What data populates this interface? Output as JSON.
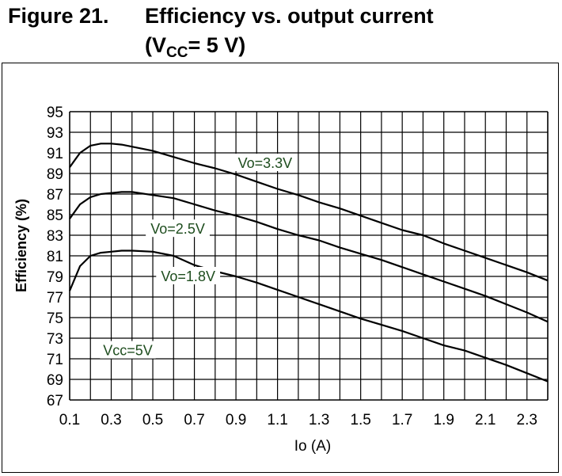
{
  "caption": {
    "figure_number": "Figure 21.",
    "title_line1": "Efficiency vs. output current",
    "title_line2_prefix": "(V",
    "title_line2_sub": "CC",
    "title_line2_suffix": "= 5 V)"
  },
  "colors": {
    "curve": "#000000",
    "grid": "#000000",
    "label_text": "#1e4d1e"
  },
  "chart_data": {
    "type": "line",
    "title": "Efficiency vs. output current (VCC= 5 V)",
    "xlabel": "Io (A)",
    "ylabel": "Efficiency (%)",
    "xlim": [
      0.1,
      2.4
    ],
    "ylim": [
      67,
      95
    ],
    "x_ticks": [
      "0.1",
      "0.3",
      "0.5",
      "0.7",
      "0.9",
      "1.1",
      "1.3",
      "1.5",
      "1.7",
      "1.9",
      "2.1",
      "2.3"
    ],
    "x_tick_values": [
      0.1,
      0.3,
      0.5,
      0.7,
      0.9,
      1.1,
      1.3,
      1.5,
      1.7,
      1.9,
      2.1,
      2.3
    ],
    "y_ticks": [
      "95",
      "93",
      "91",
      "89",
      "87",
      "85",
      "83",
      "81",
      "79",
      "77",
      "75",
      "73",
      "71",
      "69",
      "67"
    ],
    "y_tick_values": [
      95,
      93,
      91,
      89,
      87,
      85,
      83,
      81,
      79,
      77,
      75,
      73,
      71,
      69,
      67
    ],
    "grid": true,
    "annotations": [
      "Vo=3.3V",
      "Vo=2.5V",
      "Vo=1.8V",
      "Vcc=5V"
    ],
    "series": [
      {
        "name": "Vo=3.3V",
        "x": [
          0.1,
          0.15,
          0.2,
          0.25,
          0.3,
          0.35,
          0.4,
          0.5,
          0.6,
          0.7,
          0.8,
          0.9,
          1.0,
          1.1,
          1.2,
          1.3,
          1.4,
          1.5,
          1.6,
          1.7,
          1.8,
          1.9,
          2.0,
          2.1,
          2.2,
          2.3,
          2.4
        ],
        "y": [
          89.6,
          91.0,
          91.7,
          91.9,
          91.9,
          91.8,
          91.6,
          91.2,
          90.6,
          90.0,
          89.5,
          88.9,
          88.2,
          87.5,
          86.9,
          86.2,
          85.6,
          84.9,
          84.2,
          83.5,
          83.0,
          82.2,
          81.5,
          80.8,
          80.1,
          79.4,
          78.6
        ]
      },
      {
        "name": "Vo=2.5V",
        "x": [
          0.1,
          0.15,
          0.2,
          0.25,
          0.3,
          0.35,
          0.4,
          0.5,
          0.6,
          0.7,
          0.8,
          0.9,
          1.0,
          1.1,
          1.2,
          1.3,
          1.4,
          1.5,
          1.6,
          1.7,
          1.8,
          1.9,
          2.0,
          2.1,
          2.2,
          2.3,
          2.4
        ],
        "y": [
          84.6,
          86.0,
          86.7,
          87.0,
          87.1,
          87.2,
          87.2,
          86.9,
          86.6,
          86.0,
          85.4,
          84.9,
          84.3,
          83.6,
          83.0,
          82.5,
          81.8,
          81.2,
          80.6,
          79.9,
          79.2,
          78.5,
          77.8,
          77.1,
          76.3,
          75.5,
          74.6
        ]
      },
      {
        "name": "Vo=1.8V",
        "x": [
          0.1,
          0.15,
          0.2,
          0.25,
          0.3,
          0.35,
          0.4,
          0.5,
          0.6,
          0.7,
          0.8,
          0.9,
          1.0,
          1.1,
          1.2,
          1.3,
          1.4,
          1.5,
          1.6,
          1.7,
          1.8,
          1.9,
          2.0,
          2.1,
          2.2,
          2.3,
          2.4
        ],
        "y": [
          77.6,
          80.0,
          81.0,
          81.3,
          81.4,
          81.5,
          81.5,
          81.4,
          81.0,
          80.1,
          79.5,
          79.0,
          78.4,
          77.7,
          77.0,
          76.3,
          75.6,
          74.9,
          74.3,
          73.7,
          73.0,
          72.3,
          71.8,
          71.1,
          70.4,
          69.6,
          68.8
        ]
      }
    ]
  }
}
